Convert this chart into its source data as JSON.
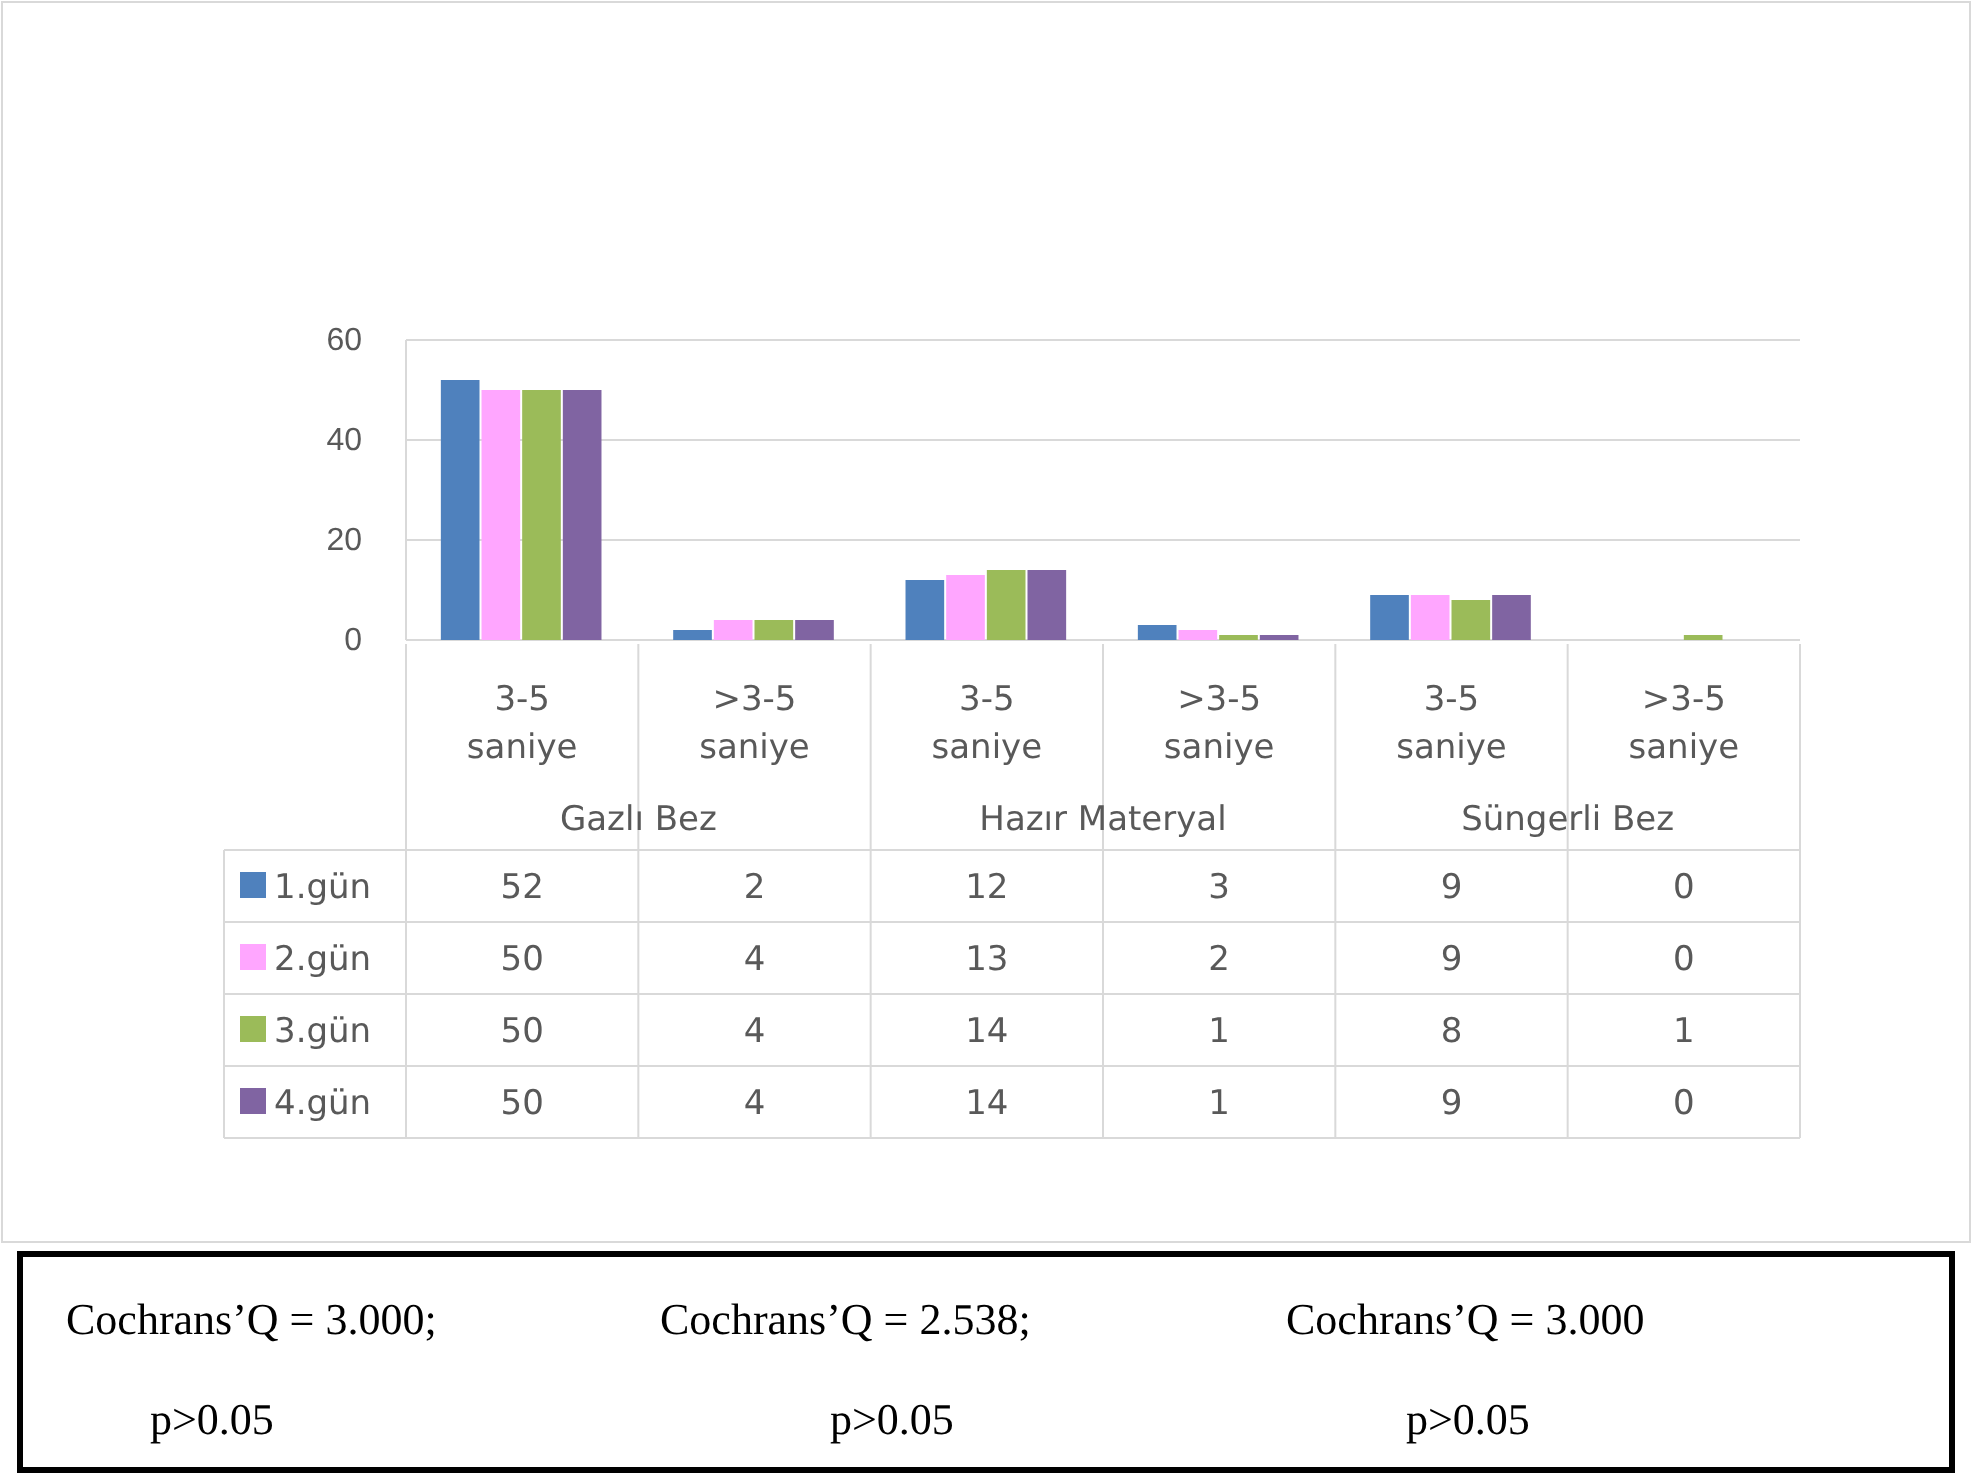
{
  "chart_data": {
    "type": "bar",
    "categories": [
      "3-5 saniye",
      ">3-5 saniye",
      "3-5 saniye",
      ">3-5 saniye",
      "3-5 saniye",
      ">3-5 saniye"
    ],
    "series": [
      {
        "name": "1.gün",
        "color": "#4f81bd",
        "values": [
          52,
          2,
          12,
          3,
          9,
          0
        ]
      },
      {
        "name": "2.gün",
        "color": "#ffa6ff",
        "values": [
          50,
          4,
          13,
          2,
          9,
          0
        ]
      },
      {
        "name": "3.gün",
        "color": "#9bbb59",
        "values": [
          50,
          4,
          14,
          1,
          8,
          1
        ]
      },
      {
        "name": "4.gün",
        "color": "#8064a2",
        "values": [
          50,
          4,
          14,
          1,
          9,
          0
        ]
      }
    ],
    "ylim": [
      0,
      60
    ],
    "yticks": [
      0,
      20,
      40,
      60
    ],
    "grid": "y",
    "legend": "bottom",
    "data_labels": true,
    "annotations": [
      "Gazlı Bez",
      "Hazır Materyal",
      "Süngerli Bez",
      "Cochrans’Q = 3.000;",
      "Cochrans’Q = 2.538;",
      "Cochrans’Q = 3.000",
      "p>0.05",
      "p>0.05",
      "p>0.05"
    ]
  }
}
